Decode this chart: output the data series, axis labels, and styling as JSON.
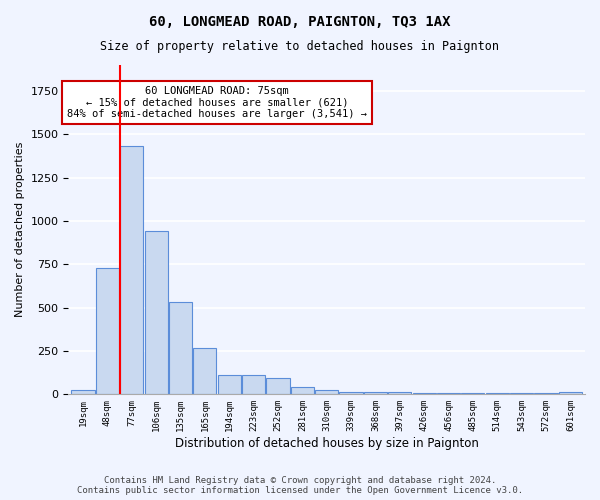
{
  "title": "60, LONGMEAD ROAD, PAIGNTON, TQ3 1AX",
  "subtitle": "Size of property relative to detached houses in Paignton",
  "xlabel": "Distribution of detached houses by size in Paignton",
  "ylabel": "Number of detached properties",
  "bin_labels": [
    "19sqm",
    "48sqm",
    "77sqm",
    "106sqm",
    "135sqm",
    "165sqm",
    "194sqm",
    "223sqm",
    "252sqm",
    "281sqm",
    "310sqm",
    "339sqm",
    "368sqm",
    "397sqm",
    "426sqm",
    "456sqm",
    "485sqm",
    "514sqm",
    "543sqm",
    "572sqm",
    "601sqm"
  ],
  "bar_values": [
    25,
    730,
    1430,
    940,
    530,
    265,
    110,
    110,
    95,
    45,
    25,
    15,
    15,
    15,
    10,
    10,
    10,
    10,
    10,
    10,
    15
  ],
  "bar_color": "#c9d9f0",
  "bar_edge_color": "#5b8dd9",
  "highlight_index": 2,
  "red_line_x": 2,
  "annotation_title": "60 LONGMEAD ROAD: 75sqm",
  "annotation_line1": "← 15% of detached houses are smaller (621)",
  "annotation_line2": "84% of semi-detached houses are larger (3,541) →",
  "annotation_box_color": "#ffffff",
  "annotation_box_edge": "#cc0000",
  "footer": "Contains HM Land Registry data © Crown copyright and database right 2024.\nContains public sector information licensed under the Open Government Licence v3.0.",
  "ylim": [
    0,
    1900
  ],
  "background_color": "#f0f4ff",
  "grid_color": "#ffffff"
}
